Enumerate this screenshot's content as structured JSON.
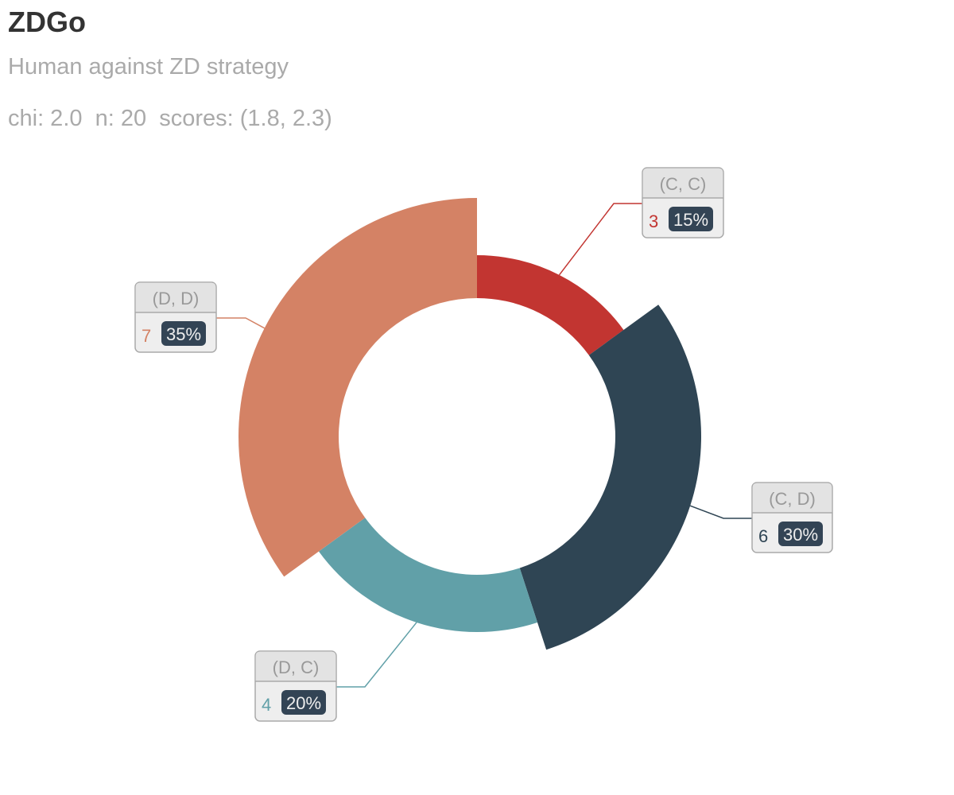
{
  "title": "ZDGo",
  "subtitle": "Human against ZD strategy",
  "subtitle2": "chi: 2.0  n: 20  scores: (1.8, 2.3)",
  "chart_data": {
    "type": "pie",
    "variant": "nightingale-rose-donut",
    "start_angle_deg": 90,
    "direction": "clockwise",
    "slices": [
      {
        "name": "(C, C)",
        "value": 3,
        "percent": "15%",
        "color": "#c23531",
        "label_side": "right"
      },
      {
        "name": "(C, D)",
        "value": 6,
        "percent": "30%",
        "color": "#2f4554",
        "label_side": "right"
      },
      {
        "name": "(D, C)",
        "value": 4,
        "percent": "20%",
        "color": "#61a0a8",
        "label_side": "left"
      },
      {
        "name": "(D, D)",
        "value": 7,
        "percent": "35%",
        "color": "#d48265",
        "label_side": "left"
      }
    ],
    "label_style": {
      "header_bg": "#e3e3e3",
      "body_bg": "#eeeeee",
      "border": "#aaaaaa",
      "header_text": "#999999",
      "percent_badge_bg": "#334455",
      "percent_badge_text": "#eeeeee"
    }
  }
}
